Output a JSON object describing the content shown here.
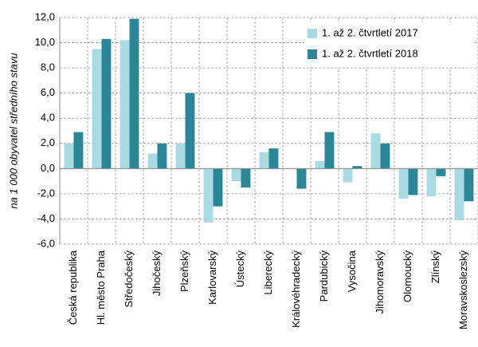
{
  "chart_data": {
    "type": "bar",
    "y_label": "na 1 000 obyvatel středního stavu",
    "categories": [
      "Česká republika",
      "Hl. město Praha",
      "Středočeský",
      "Jihočeský",
      "Plzeňský",
      "Karlovarský",
      "Ústecký",
      "Liberecký",
      "Královéhradecký",
      "Pardubický",
      "Vysočina",
      "Jihomoravský",
      "Olomoucký",
      "Zlínský",
      "Moravskoslezský"
    ],
    "series": [
      {
        "name": "1. až 2. čtvrtletí 2017",
        "color": "#a9dbe4",
        "values": [
          2.0,
          9.5,
          10.2,
          1.2,
          2.0,
          -4.3,
          -1.0,
          1.3,
          0.0,
          0.6,
          -1.1,
          2.8,
          -2.4,
          -2.2,
          -4.1
        ]
      },
      {
        "name": "1. až 2. čtvrtletí 2018",
        "color": "#2b8797",
        "values": [
          2.9,
          10.3,
          11.9,
          2.0,
          6.0,
          -3.0,
          -1.5,
          1.6,
          -1.6,
          2.9,
          0.2,
          2.0,
          -2.1,
          -0.6,
          -2.6
        ]
      }
    ],
    "ylim": [
      -6,
      12
    ],
    "yticks": [
      {
        "value": -6,
        "label": "-6,0"
      },
      {
        "value": -4,
        "label": "-4,0"
      },
      {
        "value": -2,
        "label": "-2,0"
      },
      {
        "value": 0,
        "label": "0,0"
      },
      {
        "value": 2,
        "label": "2,0"
      },
      {
        "value": 4,
        "label": "4,0"
      },
      {
        "value": 6,
        "label": "6,0"
      },
      {
        "value": 8,
        "label": "8,0"
      },
      {
        "value": 10,
        "label": "10,0"
      },
      {
        "value": 12,
        "label": "12,0"
      }
    ],
    "grid": true,
    "legend": "upper-right"
  }
}
